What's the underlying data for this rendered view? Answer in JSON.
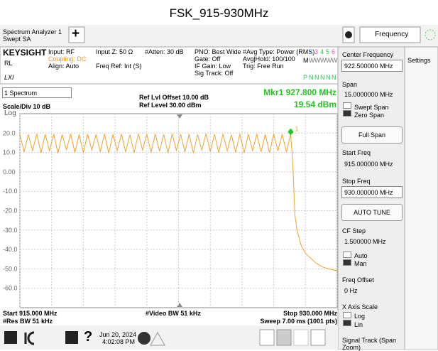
{
  "title": "FSK_915-930MHz",
  "toolbar": {
    "app": "Spectrum Analyzer 1",
    "mode": "Swept SA",
    "add": "+",
    "menu": "Frequency"
  },
  "status": {
    "brand": "KEYSIGHT",
    "rl": "RL",
    "lxi": "LXI",
    "col1": [
      "Input: RF",
      "Coupling: DC",
      "Align: Auto"
    ],
    "col2": [
      "Input Z: 50 Ω",
      "Freq Ref: Int (S)"
    ],
    "col3": [
      "#Atten: 30 dB"
    ],
    "col4": [
      "PNO: Best Wide",
      "Gate: Off",
      "IF Gain: Low",
      "Sig Track: Off"
    ],
    "col5": [
      "#Avg Type: Power (RMS)",
      "Avg|Hold: 100/100",
      "Trig: Free Run"
    ],
    "traces": [
      "1",
      "2",
      "3",
      "4",
      "5",
      "6"
    ],
    "types": [
      "M",
      "W",
      "W",
      "W",
      "W",
      "W"
    ],
    "dets": [
      "P",
      "N",
      "N",
      "N",
      "N",
      "N"
    ]
  },
  "chart_data": {
    "type": "line",
    "window": "1 Spectrum",
    "scale": "Scale/Div 10 dB",
    "scale_type": "Log",
    "ref_offset": "Ref Lvl Offset 10.00 dB",
    "ref_level": "Ref Level 30.00 dBm",
    "x": [
      915.0,
      915.2,
      915.4,
      915.6,
      915.8,
      916.0,
      916.2,
      916.4,
      916.6,
      916.8,
      917.0,
      917.2,
      917.4,
      917.6,
      917.8,
      918.0,
      918.2,
      918.4,
      918.6,
      918.8,
      919.0,
      919.2,
      919.4,
      919.6,
      919.8,
      920.0,
      920.2,
      920.4,
      920.6,
      920.8,
      921.0,
      921.2,
      921.4,
      921.6,
      921.8,
      922.0,
      922.2,
      922.4,
      922.6,
      922.8,
      923.0,
      923.2,
      923.4,
      923.6,
      923.8,
      924.0,
      924.2,
      924.4,
      924.6,
      924.8,
      925.0,
      925.2,
      925.4,
      925.6,
      925.8,
      926.0,
      926.2,
      926.4,
      926.6,
      926.8,
      927.0,
      927.2,
      927.4,
      927.6,
      927.8,
      927.9,
      928.0,
      928.1,
      928.2,
      928.3,
      928.5,
      928.8,
      929.0,
      929.3,
      929.6,
      930.0
    ],
    "values": [
      19.5,
      10.2,
      19.3,
      11.0,
      19.6,
      9.8,
      19.4,
      10.8,
      19.5,
      9.6,
      19.2,
      11.4,
      19.6,
      10.1,
      19.4,
      9.9,
      19.5,
      11.2,
      19.3,
      10.4,
      19.6,
      9.7,
      19.4,
      11.0,
      19.5,
      10.3,
      19.2,
      9.9,
      19.6,
      11.3,
      19.4,
      10.0,
      19.5,
      10.7,
      19.3,
      9.8,
      19.6,
      11.1,
      19.4,
      10.2,
      19.5,
      9.7,
      19.3,
      11.2,
      19.6,
      10.5,
      19.4,
      9.9,
      19.5,
      10.9,
      19.2,
      10.1,
      19.6,
      9.8,
      19.4,
      11.0,
      19.5,
      10.3,
      19.3,
      9.9,
      19.6,
      10.8,
      19.4,
      10.2,
      19.54,
      4.0,
      -22.0,
      -30.0,
      -34.0,
      -38.0,
      -42.0,
      -45.0,
      -47.0,
      -49.0,
      -50.0,
      -51.0
    ],
    "color": "#eba433",
    "marker": {
      "id": "1",
      "label": "Mkr1 927.800 MHz",
      "value_label": "19.54 dBm",
      "x": 927.8,
      "value": 19.54,
      "color": "#22c522"
    },
    "xlim": [
      915,
      930
    ],
    "ylim": [
      -70,
      30
    ],
    "xticks": [
      915,
      916.5,
      918,
      919.5,
      921,
      922.5,
      924,
      925.5,
      927,
      928.5,
      930
    ],
    "yticks": [
      {
        "value": 20,
        "label": "20.0"
      },
      {
        "value": 10,
        "label": "10.0"
      },
      {
        "value": 0,
        "label": "0.00"
      },
      {
        "value": -10,
        "label": "-10.0"
      },
      {
        "value": -20,
        "label": "-20.0"
      },
      {
        "value": -30,
        "label": "-30.0"
      },
      {
        "value": -40,
        "label": "-40.0"
      },
      {
        "value": -50,
        "label": "-50.0"
      },
      {
        "value": -60,
        "label": "-60.0"
      }
    ],
    "grid": true,
    "footer": {
      "start": "Start 915.000 MHz",
      "rbw": "#Res BW 51 kHz",
      "vbw": "#Video BW 51 kHz",
      "stop": "Stop 930.000 MHz",
      "sweep": "Sweep 7.00 ms (1001 pts)"
    }
  },
  "panel": {
    "center_label": "Center Frequency",
    "center_value": "922.500000 MHz",
    "span_label": "Span",
    "span_value": "15.0000000 MHz",
    "swept": "Swept Span",
    "zero": "Zero Span",
    "full_span": "Full Span",
    "start_label": "Start Freq",
    "start_value": "915.000000 MHz",
    "stop_label": "Stop Freq",
    "stop_value": "930.000000 MHz",
    "auto_tune": "AUTO TUNE",
    "cf_label": "CF Step",
    "cf_value": "1.500000 MHz",
    "auto": "Auto",
    "man": "Man",
    "offset_label": "Freq Offset",
    "offset_value": "0 Hz",
    "xscale_label": "X Axis Scale",
    "log": "Log",
    "lin": "Lin",
    "track": "Signal Track (Span Zoom)",
    "settings": "Settings"
  },
  "taskbar": {
    "help": "?",
    "date": "Jun 20, 2024",
    "time": "4:02:08 PM"
  }
}
